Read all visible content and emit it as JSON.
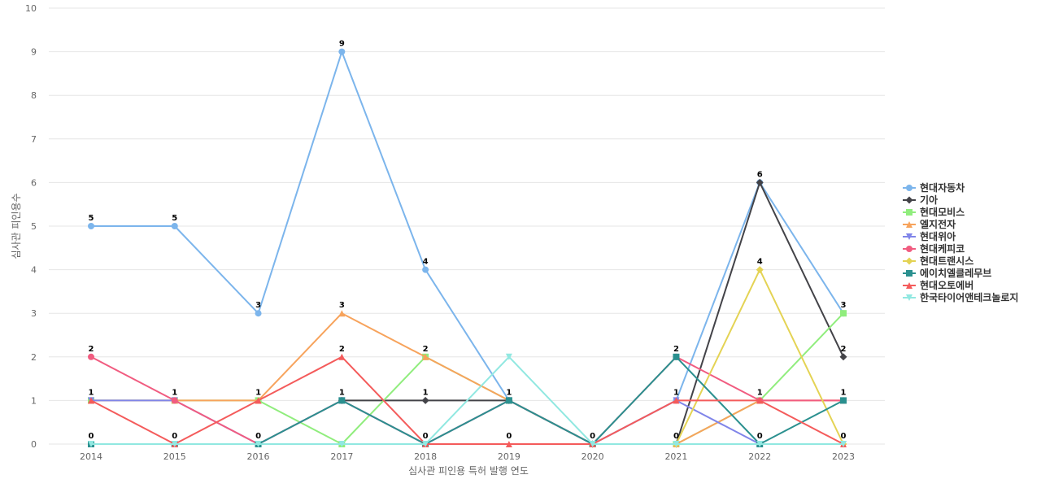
{
  "chart_data": {
    "type": "line",
    "title": "",
    "xlabel": "심사관 피인용 특허 발행 연도",
    "ylabel": "심사관 피인용수",
    "x": [
      "2014",
      "2015",
      "2016",
      "2017",
      "2018",
      "2019",
      "2020",
      "2021",
      "2022",
      "2023"
    ],
    "ylim": [
      0,
      10
    ],
    "yticks": [
      0,
      1,
      2,
      3,
      4,
      5,
      6,
      7,
      8,
      9,
      10
    ],
    "grid": true,
    "legend_position": "right",
    "series": [
      {
        "name": "현대자동차",
        "color": "#7cb5ec",
        "marker": "circle",
        "values": [
          5,
          5,
          3,
          9,
          4,
          1,
          0,
          1,
          6,
          3
        ],
        "labels": true
      },
      {
        "name": "기아",
        "color": "#434348",
        "marker": "diamond",
        "values": [
          null,
          null,
          null,
          1,
          1,
          1,
          0,
          0,
          6,
          2
        ],
        "labels": true
      },
      {
        "name": "현대모비스",
        "color": "#90ed7d",
        "marker": "square",
        "values": [
          1,
          1,
          1,
          0,
          2,
          1,
          0,
          0,
          1,
          3
        ],
        "labels": false
      },
      {
        "name": "엘지전자",
        "color": "#f7a35c",
        "marker": "triangle",
        "values": [
          1,
          1,
          1,
          3,
          2,
          1,
          0,
          0,
          1,
          1
        ],
        "labels": true
      },
      {
        "name": "현대위아",
        "color": "#8085e9",
        "marker": "triangle-down",
        "values": [
          1,
          1,
          0,
          1,
          0,
          1,
          0,
          1,
          0,
          0
        ],
        "labels": false
      },
      {
        "name": "현대케피코",
        "color": "#f15c80",
        "marker": "circle",
        "values": [
          2,
          1,
          0,
          1,
          0,
          1,
          0,
          2,
          1,
          1
        ],
        "labels": true
      },
      {
        "name": "현대트랜시스",
        "color": "#e4d354",
        "marker": "diamond",
        "values": [
          null,
          null,
          null,
          null,
          null,
          null,
          null,
          0,
          4,
          0
        ],
        "labels": true
      },
      {
        "name": "에이치엘클레무브",
        "color": "#2b908f",
        "marker": "square",
        "values": [
          0,
          0,
          0,
          1,
          0,
          1,
          0,
          2,
          0,
          1
        ],
        "labels": true
      },
      {
        "name": "현대오토에버",
        "color": "#f45b5b",
        "marker": "triangle",
        "values": [
          1,
          0,
          1,
          2,
          0,
          0,
          0,
          1,
          1,
          0
        ],
        "labels": true
      },
      {
        "name": "한국타이어앤테크놀로지",
        "color": "#91e8e1",
        "marker": "triangle-down",
        "values": [
          0,
          0,
          0,
          0,
          0,
          2,
          0,
          0,
          0,
          0
        ],
        "labels": false
      }
    ]
  }
}
